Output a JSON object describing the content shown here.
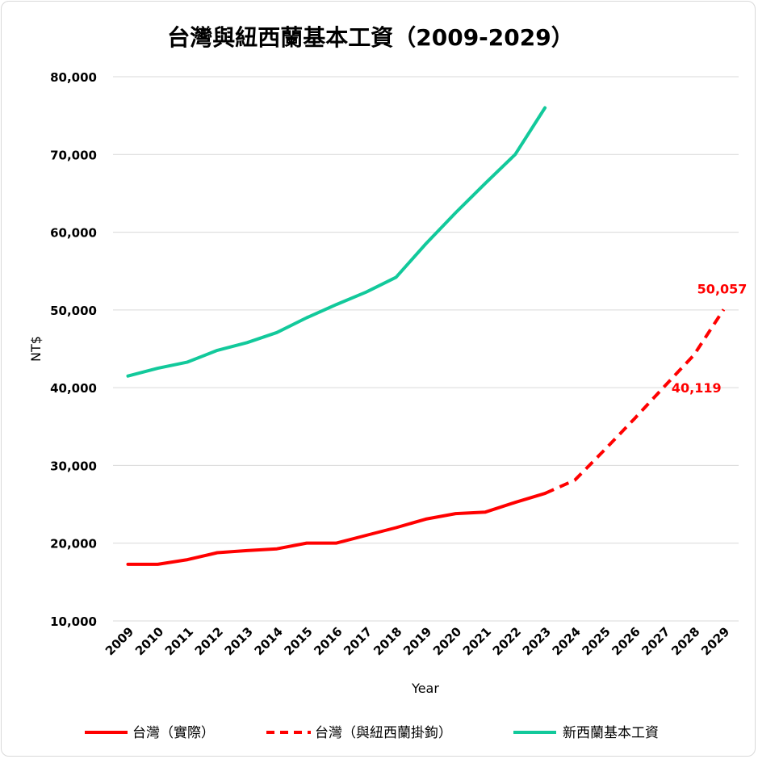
{
  "chart_data": {
    "type": "line",
    "title": "台灣與紐西蘭基本工資（2009-2029）",
    "xlabel": "Year",
    "ylabel": "NT$",
    "ylim": [
      10000,
      80000
    ],
    "yticks": [
      10000,
      20000,
      30000,
      40000,
      50000,
      60000,
      70000,
      80000
    ],
    "ytick_labels": [
      "10,000",
      "20,000",
      "30,000",
      "40,000",
      "50,000",
      "60,000",
      "70,000",
      "80,000"
    ],
    "categories": [
      "2009",
      "2010",
      "2011",
      "2012",
      "2013",
      "2014",
      "2015",
      "2016",
      "2017",
      "2018",
      "2019",
      "2020",
      "2021",
      "2022",
      "2023",
      "2024",
      "2025",
      "2026",
      "2027",
      "2028",
      "2029"
    ],
    "grid": true,
    "legend_position": "bottom",
    "series": [
      {
        "name": "台灣（實際）",
        "color": "#ff0000",
        "style": "solid",
        "values": [
          17280,
          17280,
          17880,
          18780,
          19047,
          19273,
          20008,
          20008,
          21009,
          22000,
          23100,
          23800,
          24000,
          25250,
          26400,
          null,
          null,
          null,
          null,
          null,
          null
        ]
      },
      {
        "name": "台灣（與紐西蘭掛鉤）",
        "color": "#ff0000",
        "style": "dashed",
        "values": [
          null,
          null,
          null,
          null,
          null,
          null,
          null,
          null,
          null,
          null,
          null,
          null,
          null,
          null,
          26400,
          28100,
          32000,
          36000,
          40119,
          44200,
          50057
        ]
      },
      {
        "name": "新西蘭基本工資",
        "color": "#12c99b",
        "style": "solid",
        "values": [
          41500,
          42500,
          43300,
          44800,
          45800,
          47100,
          49000,
          50700,
          52300,
          54200,
          58500,
          62500,
          66300,
          70000,
          76000,
          null,
          null,
          null,
          null,
          null,
          null
        ]
      }
    ],
    "annotations": [
      {
        "category": "2027",
        "value": 40119,
        "text": "40,119",
        "color": "#ff0000",
        "position": "below-right"
      },
      {
        "category": "2029",
        "value": 50057,
        "text": "50,057",
        "color": "#ff0000",
        "position": "above"
      }
    ]
  }
}
